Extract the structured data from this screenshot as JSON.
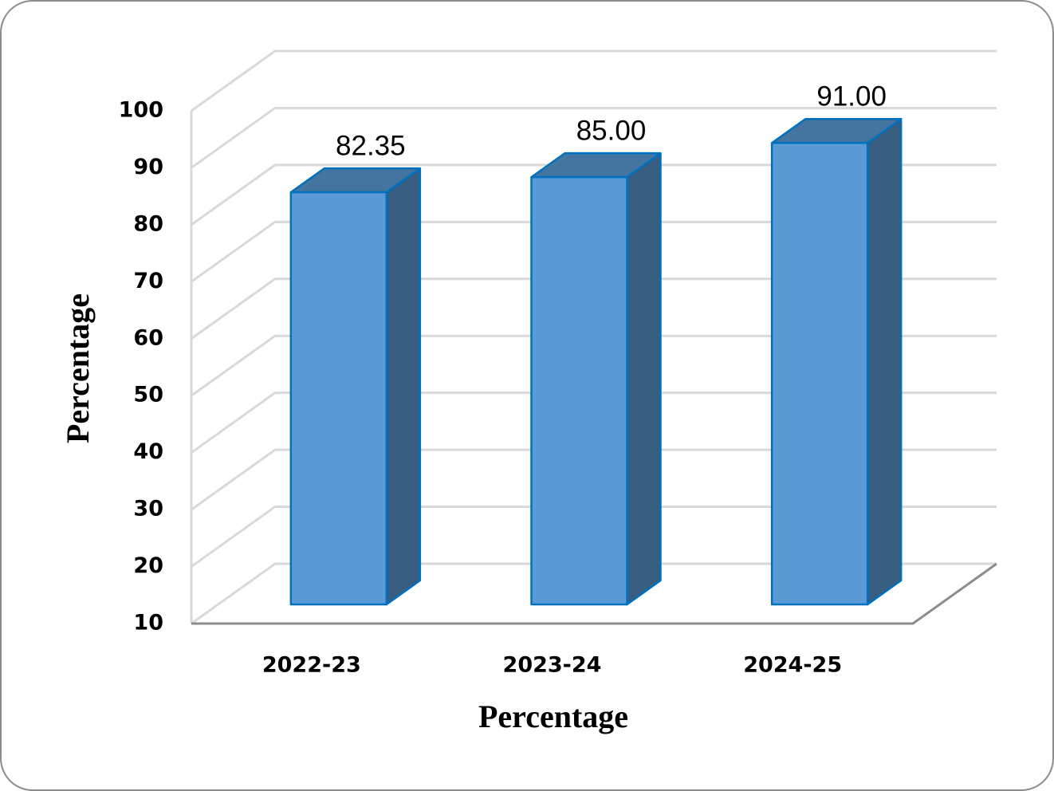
{
  "chart_data": {
    "type": "bar3d",
    "x_label": "Percentage",
    "y_label": "Percentage",
    "categories": [
      "2022-23",
      "2023-24",
      "2024-25"
    ],
    "values": [
      82.35,
      85,
      91
    ],
    "value_labels": [
      "82.35",
      "85.00",
      "91.00"
    ],
    "color": "#5b9bd5",
    "ylim": [
      10,
      100
    ],
    "yticks": [
      10,
      20,
      30,
      40,
      50,
      60,
      70,
      80,
      90,
      100
    ],
    "grid": true
  }
}
